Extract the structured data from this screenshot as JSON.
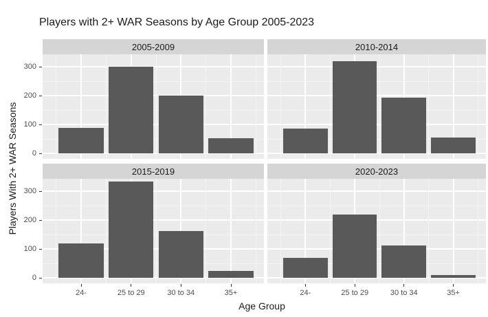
{
  "title": "Players with 2+ WAR Seasons by Age Group 2005-2023",
  "chart_data": {
    "type": "bar",
    "faceted": true,
    "title": "Players with 2+ WAR Seasons by Age Group 2005-2023",
    "xlabel": "Age Group",
    "ylabel": "Players With 2+ WAR Seasons",
    "categories": [
      "24-",
      "25 to 29",
      "30 to 34",
      "35+"
    ],
    "facets": [
      {
        "label": "2005-2009",
        "values": [
          88,
          300,
          200,
          52
        ]
      },
      {
        "label": "2010-2014",
        "values": [
          85,
          320,
          192,
          55
        ]
      },
      {
        "label": "2015-2019",
        "values": [
          118,
          333,
          162,
          25
        ]
      },
      {
        "label": "2020-2023",
        "values": [
          68,
          220,
          113,
          10
        ]
      }
    ],
    "y_ticks": [
      0,
      100,
      200,
      300
    ],
    "y_minor_ticks": [
      50,
      150,
      250
    ],
    "ylim": [
      0,
      350
    ],
    "grid": true,
    "legend": "none",
    "colors": {
      "bar": "#595959",
      "panel_bg": "#ebebeb",
      "strip_bg": "#d5d5d5",
      "grid_major": "#ffffff",
      "grid_minor": "#f5f5f5",
      "tick_text": "#4d4d4d",
      "title_text": "#1a1a1a"
    }
  }
}
